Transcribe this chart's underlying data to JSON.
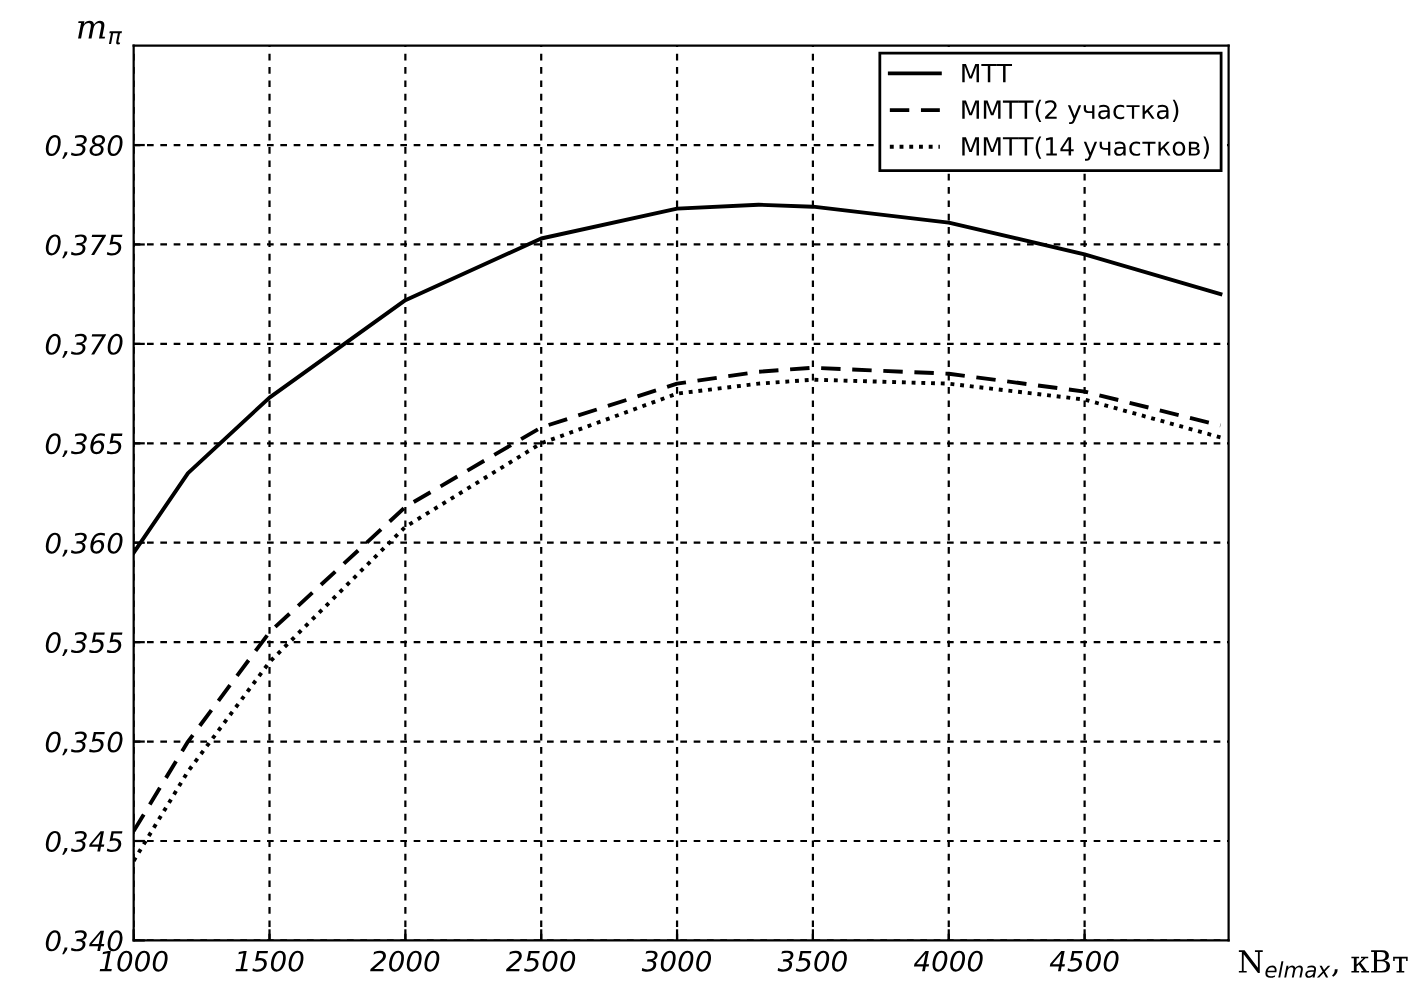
{
  "chart_data": {
    "type": "line",
    "ylabel": "m$_{π}$",
    "xlabel": "N$_{elmax}$, кВт",
    "xlim": [
      1000,
      5030
    ],
    "ylim": [
      0.34,
      0.385
    ],
    "xticks": [
      1000,
      1500,
      2000,
      2500,
      3000,
      3500,
      4000,
      4500
    ],
    "yticks": [
      {
        "value": 0.34,
        "label": "0,340"
      },
      {
        "value": 0.345,
        "label": "0,345"
      },
      {
        "value": 0.35,
        "label": "0,350"
      },
      {
        "value": 0.355,
        "label": "0,355"
      },
      {
        "value": 0.36,
        "label": "0,360"
      },
      {
        "value": 0.365,
        "label": "0,365"
      },
      {
        "value": 0.37,
        "label": "0,370"
      },
      {
        "value": 0.375,
        "label": "0,375"
      },
      {
        "value": 0.38,
        "label": "0,380"
      }
    ],
    "grid": true,
    "legend": "top right",
    "marker": "none",
    "x": [
      1000,
      1200,
      1500,
      2000,
      2500,
      3000,
      3300,
      3500,
      4000,
      4500,
      5000
    ],
    "series": [
      {
        "name": "МТТ",
        "color": "#000000",
        "line_style": "solid",
        "values": [
          0.3595,
          0.3635,
          0.3673,
          0.3722,
          0.3753,
          0.3768,
          0.377,
          0.3769,
          0.3761,
          0.3745,
          0.3725
        ]
      },
      {
        "name": "ММТТ(2 участка)",
        "color": "#000000",
        "line_style": "dashed",
        "values": [
          0.3455,
          0.35,
          0.3555,
          0.3618,
          0.3658,
          0.368,
          0.3686,
          0.3688,
          0.3685,
          0.3676,
          0.3659
        ]
      },
      {
        "name": "ММТТ(14 участков)",
        "color": "#000000",
        "line_style": "dotted",
        "values": [
          0.344,
          0.3485,
          0.354,
          0.3608,
          0.365,
          0.3675,
          0.368,
          0.3682,
          0.368,
          0.3672,
          0.3653
        ]
      }
    ]
  }
}
